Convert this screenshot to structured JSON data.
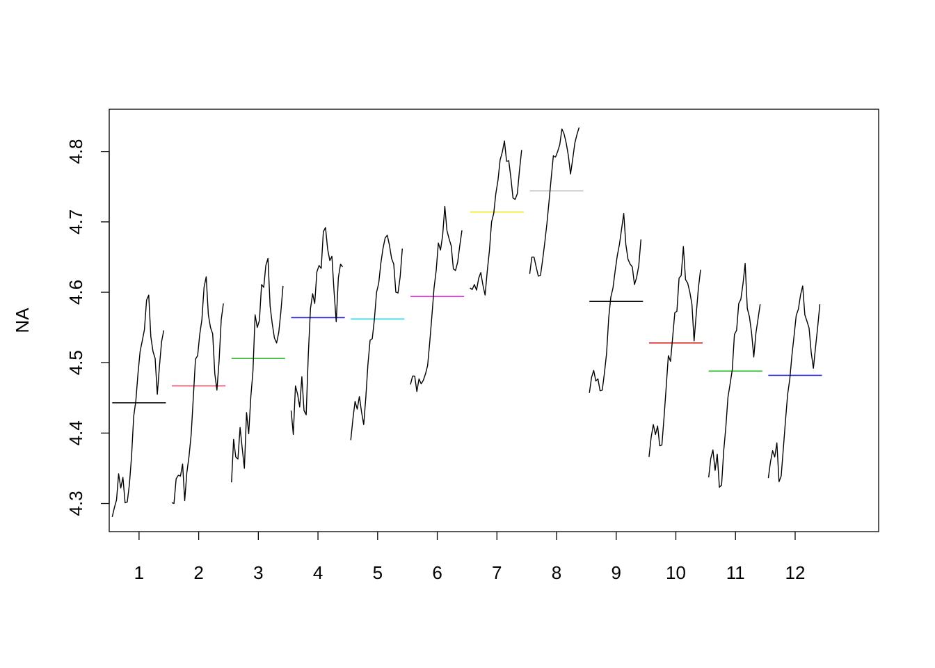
{
  "chart_data": {
    "type": "line",
    "title": "",
    "xlabel": "",
    "ylabel": "NA",
    "xlim": [
      0.5,
      13.4
    ],
    "ylim": [
      4.26,
      4.86
    ],
    "x_ticks": [
      1,
      2,
      3,
      4,
      5,
      6,
      7,
      8,
      9,
      10,
      11,
      12
    ],
    "x_tick_labels": [
      "1",
      "2",
      "3",
      "4",
      "5",
      "6",
      "7",
      "8",
      "9",
      "10",
      "11",
      "12"
    ],
    "y_ticks": [
      4.3,
      4.4,
      4.5,
      4.6,
      4.7,
      4.8
    ],
    "y_tick_labels": [
      "4.3",
      "4.4",
      "4.5",
      "4.6",
      "4.7",
      "4.8"
    ],
    "grid": false,
    "legend": "none",
    "series_color": "#000000",
    "panel_width": 0.9,
    "series": [
      {
        "values": [
          4.281,
          4.294,
          4.305,
          4.342,
          4.322,
          4.337,
          4.301,
          4.302,
          4.327,
          4.367,
          4.424,
          4.445,
          4.484,
          4.516,
          4.531,
          4.547,
          4.589,
          4.596,
          4.537,
          4.516,
          4.506,
          4.455,
          4.495,
          4.53,
          4.546
        ]
      },
      {
        "values": [
          4.301,
          4.3,
          4.335,
          4.34,
          4.339,
          4.356,
          4.304,
          4.344,
          4.367,
          4.398,
          4.451,
          4.505,
          4.51,
          4.54,
          4.561,
          4.607,
          4.622,
          4.568,
          4.55,
          4.541,
          4.484,
          4.461,
          4.502,
          4.561,
          4.584
        ]
      },
      {
        "values": [
          4.33,
          4.391,
          4.366,
          4.363,
          4.408,
          4.378,
          4.35,
          4.429,
          4.399,
          4.451,
          4.488,
          4.568,
          4.55,
          4.56,
          4.611,
          4.607,
          4.638,
          4.648,
          4.58,
          4.555,
          4.535,
          4.528,
          4.543,
          4.572,
          4.609
        ]
      },
      {
        "values": [
          4.432,
          4.398,
          4.467,
          4.455,
          4.437,
          4.48,
          4.432,
          4.426,
          4.512,
          4.577,
          4.598,
          4.584,
          4.629,
          4.638,
          4.634,
          4.686,
          4.692,
          4.661,
          4.645,
          4.651,
          4.601,
          4.558,
          4.621,
          4.64,
          4.636
        ]
      },
      {
        "values": [
          4.39,
          4.42,
          4.445,
          4.434,
          4.452,
          4.43,
          4.412,
          4.45,
          4.498,
          4.532,
          4.534,
          4.562,
          4.6,
          4.613,
          4.641,
          4.662,
          4.677,
          4.681,
          4.667,
          4.648,
          4.64,
          4.6,
          4.599,
          4.622,
          4.662
        ]
      },
      {
        "values": [
          4.469,
          4.481,
          4.481,
          4.459,
          4.477,
          4.47,
          4.475,
          4.484,
          4.496,
          4.529,
          4.566,
          4.606,
          4.631,
          4.67,
          4.66,
          4.681,
          4.722,
          4.688,
          4.676,
          4.666,
          4.633,
          4.631,
          4.643,
          4.667,
          4.688
        ]
      },
      {
        "values": [
          4.606,
          4.604,
          4.611,
          4.603,
          4.62,
          4.628,
          4.61,
          4.596,
          4.63,
          4.659,
          4.7,
          4.712,
          4.74,
          4.759,
          4.788,
          4.799,
          4.815,
          4.786,
          4.787,
          4.763,
          4.734,
          4.732,
          4.74,
          4.773,
          4.802
        ]
      },
      {
        "values": [
          4.626,
          4.65,
          4.65,
          4.636,
          4.623,
          4.624,
          4.646,
          4.67,
          4.697,
          4.729,
          4.762,
          4.794,
          4.792,
          4.8,
          4.81,
          4.832,
          4.825,
          4.812,
          4.794,
          4.768,
          4.789,
          4.812,
          4.824,
          4.834
        ]
      },
      {
        "values": [
          4.457,
          4.479,
          4.489,
          4.474,
          4.477,
          4.46,
          4.461,
          4.485,
          4.513,
          4.564,
          4.593,
          4.606,
          4.63,
          4.652,
          4.668,
          4.69,
          4.712,
          4.668,
          4.647,
          4.64,
          4.636,
          4.611,
          4.621,
          4.638,
          4.675
        ]
      },
      {
        "values": [
          4.366,
          4.394,
          4.412,
          4.398,
          4.41,
          4.382,
          4.383,
          4.422,
          4.465,
          4.51,
          4.502,
          4.536,
          4.571,
          4.573,
          4.62,
          4.624,
          4.665,
          4.618,
          4.613,
          4.6,
          4.583,
          4.531,
          4.569,
          4.606,
          4.632
        ]
      },
      {
        "values": [
          4.337,
          4.364,
          4.376,
          4.347,
          4.37,
          4.323,
          4.326,
          4.375,
          4.408,
          4.451,
          4.47,
          4.49,
          4.54,
          4.546,
          4.584,
          4.59,
          4.612,
          4.641,
          4.577,
          4.565,
          4.542,
          4.508,
          4.542,
          4.562,
          4.583
        ]
      },
      {
        "values": [
          4.336,
          4.359,
          4.375,
          4.366,
          4.386,
          4.331,
          4.339,
          4.378,
          4.418,
          4.455,
          4.477,
          4.51,
          4.538,
          4.567,
          4.576,
          4.596,
          4.609,
          4.568,
          4.559,
          4.549,
          4.514,
          4.492,
          4.522,
          4.551,
          4.583
        ]
      }
    ],
    "means": [
      {
        "month": "1",
        "value": 4.443,
        "color": "#000000"
      },
      {
        "month": "2",
        "value": 4.467,
        "color": "#DF536B"
      },
      {
        "month": "3",
        "value": 4.506,
        "color": "#22B521"
      },
      {
        "month": "4",
        "value": 4.564,
        "color": "#2B2BD8"
      },
      {
        "month": "5",
        "value": 4.562,
        "color": "#22D0E0"
      },
      {
        "month": "6",
        "value": 4.594,
        "color": "#E11EE1"
      },
      {
        "month": "7",
        "value": 4.714,
        "color": "#EDE72A"
      },
      {
        "month": "8",
        "value": 4.744,
        "color": "#BEBEBE"
      },
      {
        "month": "9",
        "value": 4.587,
        "color": "#000000"
      },
      {
        "month": "10",
        "value": 4.528,
        "color": "#DF1A1A"
      },
      {
        "month": "11",
        "value": 4.488,
        "color": "#22B521"
      },
      {
        "month": "12",
        "value": 4.482,
        "color": "#2B2BD8"
      }
    ]
  }
}
